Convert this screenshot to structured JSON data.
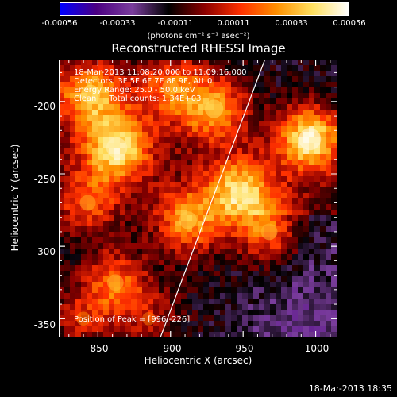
{
  "colorbar": {
    "ticks": [
      "-0.00056",
      "-0.00033",
      "-0.00011",
      "0.00011",
      "0.00033",
      "0.00056"
    ],
    "unit_label": "(photons cm⁻² s⁻¹ asec⁻²)",
    "min": -0.00056,
    "max": 0.00056
  },
  "chart_data": {
    "type": "heatmap",
    "title": "Reconstructed RHESSI Image",
    "xlabel": "Heliocentric X (arcsec)",
    "ylabel": "Heliocentric Y (arcsec)",
    "xlim": [
      823,
      1015
    ],
    "ylim": [
      -363,
      -171
    ],
    "x_ticks": [
      "850",
      "900",
      "950",
      "1000"
    ],
    "y_ticks": [
      "-200",
      "-250",
      "-300",
      "-350"
    ],
    "info_lines": [
      "18-Mar-2013 11:08:20.000 to 11:09:16.000",
      "Detectors: 3F 5F 6F 7F 8F 9F, Att 0",
      "Energy Range: 25.0 - 50.0 keV",
      "Clean     Total counts: 1.34E+03"
    ],
    "peak_text": "Position of Peak = [996,-226]",
    "limb_line": {
      "x_start": 893,
      "y_start": -363,
      "x_end": 965,
      "y_end": -171
    },
    "sources": [
      {
        "x": 863,
        "y": -232,
        "intensity": 0.9
      },
      {
        "x": 845,
        "y": -195,
        "intensity": 0.75
      },
      {
        "x": 900,
        "y": -190,
        "intensity": 0.55
      },
      {
        "x": 930,
        "y": -205,
        "intensity": 0.7
      },
      {
        "x": 948,
        "y": -262,
        "intensity": 0.8
      },
      {
        "x": 996,
        "y": -226,
        "intensity": 1.0
      },
      {
        "x": 968,
        "y": -290,
        "intensity": 0.55
      },
      {
        "x": 912,
        "y": -282,
        "intensity": 0.65
      },
      {
        "x": 862,
        "y": -325,
        "intensity": 0.55
      },
      {
        "x": 843,
        "y": -270,
        "intensity": 0.5
      },
      {
        "x": 840,
        "y": -350,
        "intensity": 0.35
      },
      {
        "x": 885,
        "y": -350,
        "intensity": 0.3
      }
    ],
    "color_scale": [
      "#0000ff",
      "#4b0082",
      "#7a3d9c",
      "#000000",
      "#8b0000",
      "#ff3000",
      "#ff9000",
      "#ffe060",
      "#ffffff"
    ]
  },
  "timestamp": "18-Mar-2013 18:35"
}
